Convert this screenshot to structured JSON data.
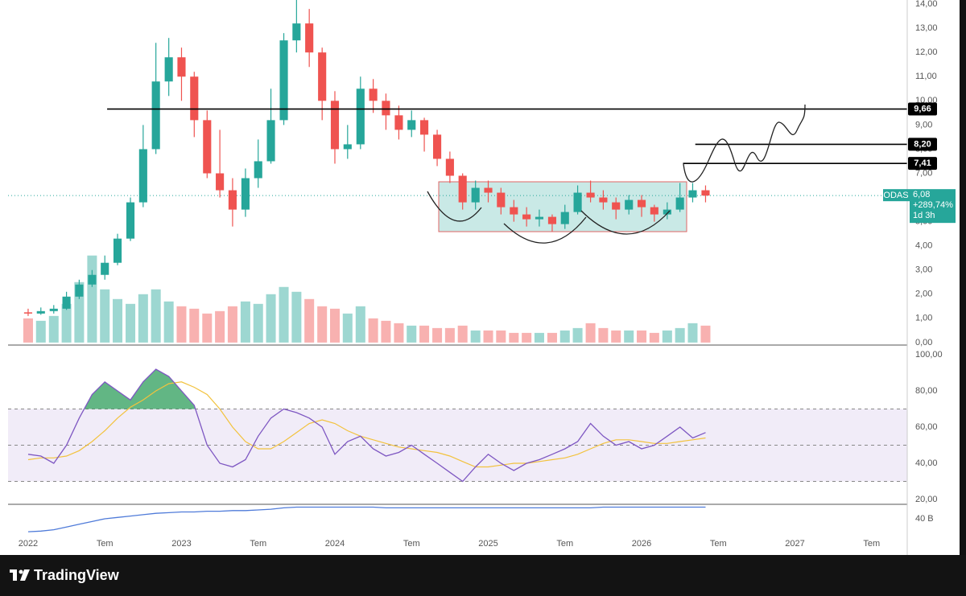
{
  "chart_data": [
    {
      "type": "candlestick",
      "symbol": "ODAS",
      "up_color": "#26a69a",
      "down_color": "#ef5350",
      "xlim": [
        2021.869,
        2027.732
      ],
      "xticks": [
        2022,
        {
          "value": 2022.5,
          "label": "Tem"
        },
        2023,
        {
          "value": 2023.5,
          "label": "Tem"
        },
        2024,
        {
          "value": 2024.5,
          "label": "Tem"
        },
        2025,
        {
          "value": 2025.5,
          "label": "Tem"
        },
        2026,
        {
          "value": 2026.5,
          "label": "Tem"
        },
        2027,
        {
          "value": 2027.5,
          "label": "Tem"
        }
      ],
      "ylim": [
        -0.07,
        14.17
      ],
      "yticks": [
        {
          "value": 0,
          "label": "0,00"
        },
        {
          "value": 1,
          "label": "1,00"
        },
        {
          "value": 2,
          "label": "2,00"
        },
        {
          "value": 3,
          "label": "3,00"
        },
        {
          "value": 4,
          "label": "4,00"
        },
        {
          "value": 5,
          "label": "5,00"
        },
        {
          "value": 6,
          "label": "6,00"
        },
        {
          "value": 7,
          "label": "7,00"
        },
        {
          "value": 8,
          "label": "8,00"
        },
        {
          "value": 9,
          "label": "9,00"
        },
        {
          "value": 10,
          "label": "10,00"
        },
        {
          "value": 11,
          "label": "11,00"
        },
        {
          "value": 12,
          "label": "12,00"
        },
        {
          "value": 13,
          "label": "13,00"
        },
        {
          "value": 14,
          "label": "14,00"
        }
      ],
      "x": [
        2022,
        2022.083,
        2022.167,
        2022.25,
        2022.333,
        2022.417,
        2022.5,
        2022.583,
        2022.667,
        2022.75,
        2022.833,
        2022.917,
        2023,
        2023.083,
        2023.167,
        2023.25,
        2023.333,
        2023.417,
        2023.5,
        2023.583,
        2023.667,
        2023.75,
        2023.833,
        2023.917,
        2024,
        2024.083,
        2024.167,
        2024.25,
        2024.333,
        2024.417,
        2024.5,
        2024.583,
        2024.667,
        2024.75,
        2024.833,
        2024.917,
        2025,
        2025.083,
        2025.167,
        2025.25,
        2025.333,
        2025.417,
        2025.5,
        2025.583,
        2025.667,
        2025.75,
        2025.833,
        2025.917,
        2026,
        2026.083,
        2026.167,
        2026.25,
        2026.333,
        2026.417
      ],
      "open": [
        1.25,
        1.2,
        1.3,
        1.4,
        1.9,
        2.4,
        2.8,
        3.3,
        4.3,
        5.8,
        8.0,
        10.8,
        11.8,
        11.0,
        9.2,
        7.0,
        6.3,
        5.5,
        6.8,
        7.5,
        9.2,
        12.5,
        13.2,
        12.0,
        10.0,
        8.0,
        8.2,
        10.5,
        10.0,
        9.4,
        8.8,
        9.2,
        8.6,
        7.6,
        6.9,
        5.8,
        6.4,
        6.2,
        5.6,
        5.3,
        5.1,
        5.2,
        4.9,
        5.4,
        6.2,
        6.0,
        5.8,
        5.5,
        5.9,
        5.6,
        5.3,
        5.5,
        6.0,
        6.3
      ],
      "high": [
        1.4,
        1.45,
        1.55,
        2.1,
        2.6,
        3.0,
        3.6,
        4.5,
        6.0,
        9.0,
        12.4,
        12.6,
        12.2,
        11.2,
        9.6,
        8.8,
        6.8,
        7.2,
        8.4,
        10.5,
        12.8,
        14.2,
        13.8,
        12.2,
        10.4,
        9.0,
        11.0,
        10.9,
        10.3,
        9.8,
        9.6,
        9.3,
        8.8,
        7.9,
        7.0,
        6.7,
        6.7,
        6.4,
        5.9,
        5.6,
        5.5,
        5.3,
        5.7,
        6.5,
        6.7,
        6.3,
        6.0,
        6.1,
        6.1,
        5.7,
        5.8,
        6.6,
        6.6,
        6.5
      ],
      "low": [
        1.1,
        1.15,
        1.2,
        1.35,
        1.8,
        2.3,
        2.6,
        3.2,
        4.2,
        5.6,
        7.8,
        10.2,
        10.0,
        8.5,
        6.8,
        6.0,
        4.8,
        5.2,
        6.4,
        7.4,
        9.0,
        12.0,
        11.4,
        9.2,
        7.4,
        7.6,
        8.0,
        9.5,
        8.8,
        8.4,
        8.5,
        7.9,
        7.3,
        6.6,
        5.5,
        5.5,
        5.8,
        5.3,
        5.0,
        4.8,
        4.8,
        4.6,
        4.7,
        5.3,
        5.8,
        5.5,
        5.1,
        5.3,
        5.2,
        5.0,
        5.1,
        5.4,
        5.8,
        5.8
      ],
      "close": [
        1.2,
        1.3,
        1.4,
        1.9,
        2.4,
        2.8,
        3.3,
        4.3,
        5.8,
        8.0,
        10.8,
        11.8,
        11.0,
        9.2,
        7.0,
        6.3,
        5.5,
        6.8,
        7.5,
        9.2,
        12.5,
        13.2,
        12.0,
        10.0,
        8.0,
        8.2,
        10.5,
        10.0,
        9.4,
        8.8,
        9.2,
        8.6,
        7.6,
        6.9,
        5.8,
        6.4,
        6.2,
        5.6,
        5.3,
        5.1,
        5.2,
        4.9,
        5.4,
        6.2,
        6.0,
        5.8,
        5.5,
        5.9,
        5.6,
        5.3,
        5.5,
        6.0,
        6.3,
        6.08
      ],
      "volume": [
        1.0,
        0.9,
        1.1,
        1.6,
        2.5,
        3.6,
        2.2,
        1.8,
        1.6,
        2.0,
        2.2,
        1.7,
        1.5,
        1.4,
        1.2,
        1.3,
        1.5,
        1.7,
        1.6,
        2.0,
        2.3,
        2.1,
        1.8,
        1.5,
        1.4,
        1.2,
        1.5,
        1.0,
        0.9,
        0.8,
        0.7,
        0.7,
        0.6,
        0.6,
        0.7,
        0.5,
        0.5,
        0.5,
        0.4,
        0.4,
        0.4,
        0.4,
        0.5,
        0.6,
        0.8,
        0.6,
        0.5,
        0.5,
        0.5,
        0.4,
        0.5,
        0.6,
        0.8,
        0.7
      ],
      "levels": [
        {
          "value": 9.66,
          "label": "9,66",
          "start": 2022.515
        },
        {
          "value": 8.2,
          "label": "8,20",
          "start": 2026.35
        },
        {
          "value": 7.41,
          "label": "7,41",
          "start": 2026.27
        }
      ],
      "last_price": {
        "value": 6.08,
        "label": "6,08"
      },
      "change": {
        "value": 289.74,
        "label": "+289,74%"
      },
      "countdown": "1d 3h"
    },
    {
      "type": "rsi",
      "color": "#7e57c2",
      "ma_color": "#f2c23d",
      "band_color": "#ede7f6",
      "fill_color": "#2e9e5b",
      "ylim": [
        17.8,
        104.9
      ],
      "yticks": [
        {
          "value": 20,
          "label": "20,00"
        },
        {
          "value": 40,
          "label": "40,00"
        },
        {
          "value": 60,
          "label": "60,00"
        },
        {
          "value": 80,
          "label": "80,00"
        },
        {
          "value": 100,
          "label": "100,00"
        }
      ],
      "bands": [
        70,
        50,
        30
      ],
      "values": [
        45,
        44,
        40,
        50,
        65,
        78,
        85,
        80,
        75,
        85,
        92,
        88,
        80,
        72,
        50,
        40,
        38,
        42,
        55,
        65,
        70,
        68,
        65,
        60,
        45,
        52,
        55,
        48,
        44,
        46,
        50,
        45,
        40,
        35,
        30,
        38,
        45,
        40,
        36,
        40,
        42,
        45,
        48,
        52,
        62,
        55,
        50,
        52,
        48,
        50,
        55,
        60,
        54,
        57
      ],
      "ma": [
        42,
        43,
        43,
        44,
        47,
        52,
        58,
        65,
        71,
        75,
        80,
        84,
        85,
        82,
        78,
        70,
        60,
        52,
        48,
        48,
        52,
        57,
        62,
        64,
        62,
        58,
        55,
        53,
        51,
        49,
        48,
        47,
        46,
        44,
        41,
        38,
        38,
        39,
        40,
        40,
        41,
        42,
        43,
        45,
        48,
        51,
        53,
        53,
        52,
        51,
        51,
        52,
        53,
        54
      ]
    },
    {
      "type": "line",
      "color": "#4f7bd9",
      "ylim": [
        20,
        60
      ],
      "yticks": [
        {
          "value": 40,
          "label": "40 B"
        }
      ],
      "values": [
        21,
        22,
        24,
        28,
        32,
        36,
        40,
        42,
        44,
        46,
        48,
        49,
        50,
        50,
        51,
        51,
        52,
        52,
        53,
        54,
        56,
        57,
        57,
        57,
        57,
        57,
        57,
        57,
        56,
        56,
        56,
        56,
        56,
        56,
        56,
        56,
        56,
        56,
        56,
        56,
        56,
        56,
        56,
        56,
        56,
        57,
        57,
        57,
        57,
        57,
        57,
        57,
        57,
        57
      ]
    }
  ],
  "footer": {
    "brand": "TradingView"
  }
}
